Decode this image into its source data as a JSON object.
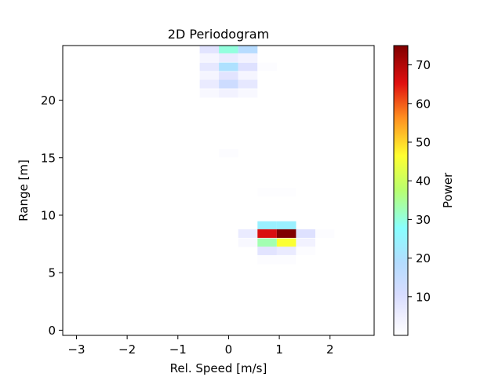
{
  "chart_data": {
    "type": "heatmap",
    "title": "2D Periodogram",
    "xlabel": "Rel. Speed [m/s]",
    "ylabel": "Range [m]",
    "xlim": [
      -3.27,
      2.87
    ],
    "ylim": [
      -0.45,
      24.75
    ],
    "xticks": [
      -3,
      -2,
      -1,
      0,
      1,
      2
    ],
    "xtick_labels": [
      "−3",
      "−2",
      "−1",
      "0",
      "1",
      "2"
    ],
    "yticks": [
      0,
      5,
      10,
      15,
      20
    ],
    "ytick_labels": [
      "0",
      "5",
      "10",
      "15",
      "20"
    ],
    "cell_width": 0.38,
    "cell_height": 0.75,
    "colorbar": {
      "label": "Power",
      "min": 0,
      "max": 75,
      "ticks": [
        10,
        20,
        30,
        40,
        50,
        60,
        70
      ],
      "tick_labels": [
        "10",
        "20",
        "30",
        "40",
        "50",
        "60",
        "70"
      ]
    },
    "cells": [
      {
        "x": -0.38,
        "y": 24.4,
        "v": 8
      },
      {
        "x": 0.0,
        "y": 24.4,
        "v": 30
      },
      {
        "x": 0.38,
        "y": 24.4,
        "v": 18
      },
      {
        "x": -0.38,
        "y": 23.7,
        "v": 3
      },
      {
        "x": 0.0,
        "y": 23.7,
        "v": 6
      },
      {
        "x": 0.38,
        "y": 23.7,
        "v": 4
      },
      {
        "x": -0.38,
        "y": 22.9,
        "v": 7
      },
      {
        "x": 0.0,
        "y": 22.9,
        "v": 20
      },
      {
        "x": 0.38,
        "y": 22.9,
        "v": 9
      },
      {
        "x": 0.76,
        "y": 22.9,
        "v": 1
      },
      {
        "x": -0.38,
        "y": 22.1,
        "v": 3
      },
      {
        "x": 0.0,
        "y": 22.1,
        "v": 8
      },
      {
        "x": 0.38,
        "y": 22.1,
        "v": 3
      },
      {
        "x": -0.38,
        "y": 21.4,
        "v": 6
      },
      {
        "x": 0.0,
        "y": 21.4,
        "v": 13
      },
      {
        "x": 0.38,
        "y": 21.4,
        "v": 7
      },
      {
        "x": -0.38,
        "y": 20.6,
        "v": 2
      },
      {
        "x": 0.0,
        "y": 20.6,
        "v": 4
      },
      {
        "x": 0.38,
        "y": 20.6,
        "v": 2
      },
      {
        "x": 0.0,
        "y": 15.4,
        "v": 0.8
      },
      {
        "x": 0.76,
        "y": 12.0,
        "v": 0.6
      },
      {
        "x": 1.14,
        "y": 12.0,
        "v": 0.6
      },
      {
        "x": 0.76,
        "y": 9.1,
        "v": 24
      },
      {
        "x": 1.14,
        "y": 9.1,
        "v": 24
      },
      {
        "x": 0.38,
        "y": 8.4,
        "v": 6
      },
      {
        "x": 0.76,
        "y": 8.4,
        "v": 66
      },
      {
        "x": 1.14,
        "y": 8.4,
        "v": 75
      },
      {
        "x": 1.52,
        "y": 8.4,
        "v": 9
      },
      {
        "x": 1.9,
        "y": 8.4,
        "v": 1
      },
      {
        "x": 0.38,
        "y": 7.6,
        "v": 2
      },
      {
        "x": 0.76,
        "y": 7.6,
        "v": 33
      },
      {
        "x": 1.14,
        "y": 7.6,
        "v": 46
      },
      {
        "x": 1.52,
        "y": 7.6,
        "v": 4
      },
      {
        "x": 0.76,
        "y": 6.9,
        "v": 8
      },
      {
        "x": 1.14,
        "y": 6.9,
        "v": 6
      },
      {
        "x": 1.52,
        "y": 6.9,
        "v": 1
      },
      {
        "x": 0.76,
        "y": 6.1,
        "v": 1
      },
      {
        "x": 1.14,
        "y": 6.1,
        "v": 1
      }
    ]
  }
}
